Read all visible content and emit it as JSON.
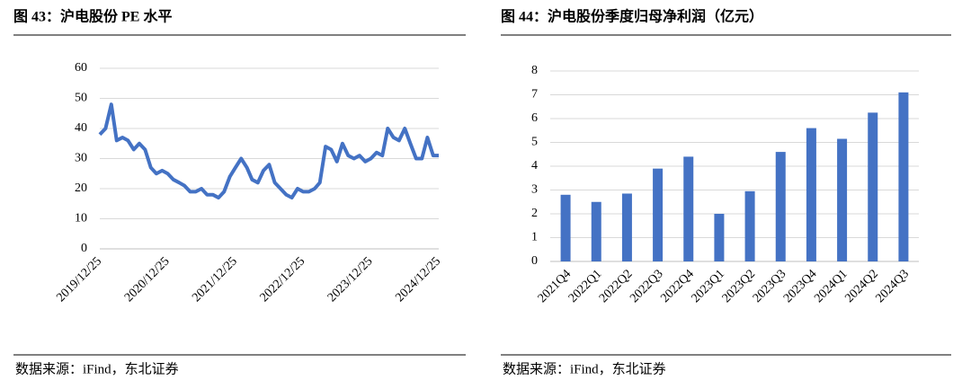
{
  "chart_data": [
    {
      "type": "line",
      "title": "图 43：沪电股份 PE 水平",
      "source": "数据来源：iFind，东北证券",
      "color": "#4472c4",
      "grid": true,
      "x": [
        "2019/12/25",
        "2020/01/25",
        "2020/02/25",
        "2020/03/25",
        "2020/04/25",
        "2020/05/25",
        "2020/06/25",
        "2020/07/25",
        "2020/08/25",
        "2020/09/25",
        "2020/10/25",
        "2020/11/25",
        "2020/12/25",
        "2021/01/25",
        "2021/02/25",
        "2021/03/25",
        "2021/04/25",
        "2021/05/25",
        "2021/06/25",
        "2021/07/25",
        "2021/08/25",
        "2021/09/25",
        "2021/10/25",
        "2021/11/25",
        "2021/12/25",
        "2022/01/25",
        "2022/02/25",
        "2022/03/25",
        "2022/04/25",
        "2022/05/25",
        "2022/06/25",
        "2022/07/25",
        "2022/08/25",
        "2022/09/25",
        "2022/10/25",
        "2022/11/25",
        "2022/12/25",
        "2023/01/25",
        "2023/02/25",
        "2023/03/25",
        "2023/04/25",
        "2023/05/25",
        "2023/06/25",
        "2023/07/25",
        "2023/08/25",
        "2023/09/25",
        "2023/10/25",
        "2023/11/25",
        "2023/12/25",
        "2024/01/25",
        "2024/02/25",
        "2024/03/25",
        "2024/04/25",
        "2024/05/25",
        "2024/06/25",
        "2024/07/25",
        "2024/08/25",
        "2024/09/25",
        "2024/10/25",
        "2024/11/25",
        "2024/12/25"
      ],
      "values": [
        38,
        40,
        48,
        36,
        37,
        36,
        33,
        35,
        33,
        27,
        25,
        26,
        25,
        23,
        22,
        21,
        19,
        19,
        20,
        18,
        18,
        17,
        19,
        24,
        27,
        30,
        27,
        23,
        22,
        26,
        28,
        22,
        20,
        18,
        17,
        20,
        19,
        19,
        20,
        22,
        34,
        33,
        29,
        35,
        31,
        30,
        31,
        29,
        30,
        32,
        31,
        40,
        37,
        36,
        40,
        35,
        30,
        30,
        37,
        31,
        31
      ],
      "xlim": [
        "2019/12/25",
        "2024/12/25"
      ],
      "xticks": [
        "2019/12/25",
        "2020/12/25",
        "2021/12/25",
        "2022/12/25",
        "2023/12/25",
        "2024/12/25"
      ],
      "ylim": [
        0,
        60
      ],
      "yticks": [
        0,
        10,
        20,
        30,
        40,
        50,
        60
      ]
    },
    {
      "type": "bar",
      "title": "图 44：沪电股份季度归母净利润（亿元）",
      "source": "数据来源：iFind，东北证券",
      "color": "#4472c4",
      "grid": true,
      "categories": [
        "2021Q4",
        "2022Q1",
        "2022Q2",
        "2022Q3",
        "2022Q4",
        "2023Q1",
        "2023Q2",
        "2023Q3",
        "2023Q4",
        "2024Q1",
        "2024Q2",
        "2024Q3"
      ],
      "values": [
        2.8,
        2.5,
        2.85,
        3.9,
        4.4,
        2.0,
        2.95,
        4.6,
        5.6,
        5.15,
        6.25,
        7.1
      ],
      "ylim": [
        0,
        8
      ],
      "yticks": [
        0,
        1,
        2,
        3,
        4,
        5,
        6,
        7,
        8
      ]
    }
  ]
}
